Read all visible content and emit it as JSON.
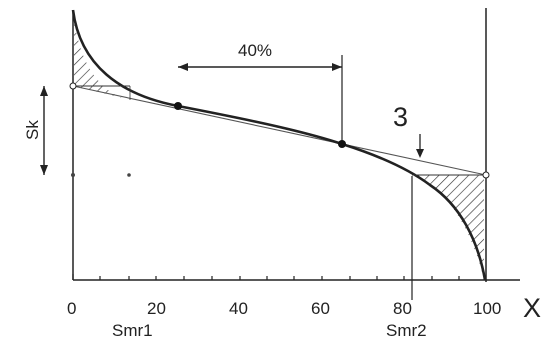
{
  "colors": {
    "ink": "#222222",
    "thin": "#555555",
    "background": "#ffffff"
  },
  "x_axis": {
    "ticks": [
      "0",
      "20",
      "40",
      "60",
      "80",
      "100"
    ],
    "letter": "X"
  },
  "annotations": {
    "percent_window": "40%",
    "callout_number": "3",
    "sk": "Sk",
    "smr1": "Smr1",
    "smr2": "Smr2"
  }
}
